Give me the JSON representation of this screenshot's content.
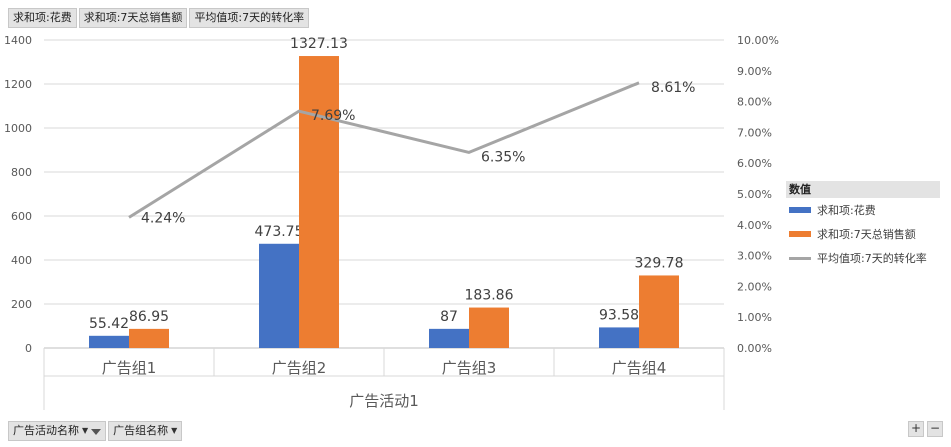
{
  "fields": {
    "value_fields": [
      "求和项:花费",
      "求和项:7天总销售额",
      "平均值项:7天的转化率"
    ],
    "axis_fields": [
      "广告活动名称",
      "广告组名称"
    ]
  },
  "legend": {
    "title": "数值"
  },
  "colors": {
    "spend": "#4472C4",
    "sales": "#ED7D31",
    "rate": "#A5A5A5"
  },
  "icons": [
    "dropdown-icon",
    "filter-icon",
    "plus-icon",
    "minus-icon"
  ],
  "zoom": {
    "plus": "+",
    "minus": "−"
  },
  "chart_data": {
    "type": "bar",
    "categories": [
      "广告组1",
      "广告组2",
      "广告组3",
      "广告组4"
    ],
    "group_label": "广告活动1",
    "series": [
      {
        "name": "求和项:花费",
        "type": "bar",
        "axis": "left",
        "values": [
          55.42,
          473.75,
          87,
          93.58
        ],
        "labels": [
          "55.42",
          "473.75",
          "87",
          "93.58"
        ]
      },
      {
        "name": "求和项:7天总销售额",
        "type": "bar",
        "axis": "left",
        "values": [
          86.95,
          1327.13,
          183.86,
          329.78
        ],
        "labels": [
          "86.95",
          "1327.13",
          "183.86",
          "329.78"
        ]
      },
      {
        "name": "平均值项:7天的转化率",
        "type": "line",
        "axis": "right",
        "values": [
          0.0424,
          0.0769,
          0.0635,
          0.0861
        ],
        "labels": [
          "4.24%",
          "7.69%",
          "6.35%",
          "8.61%"
        ]
      }
    ],
    "y_left": {
      "min": 0,
      "max": 1400,
      "step": 200,
      "ticks": [
        "0",
        "200",
        "400",
        "600",
        "800",
        "1000",
        "1200",
        "1400"
      ]
    },
    "y_right": {
      "min": 0,
      "max": 0.1,
      "step": 0.01,
      "ticks": [
        "0.00%",
        "1.00%",
        "2.00%",
        "3.00%",
        "4.00%",
        "5.00%",
        "6.00%",
        "7.00%",
        "8.00%",
        "9.00%",
        "10.00%"
      ]
    },
    "grid": true,
    "legend_position": "right"
  }
}
